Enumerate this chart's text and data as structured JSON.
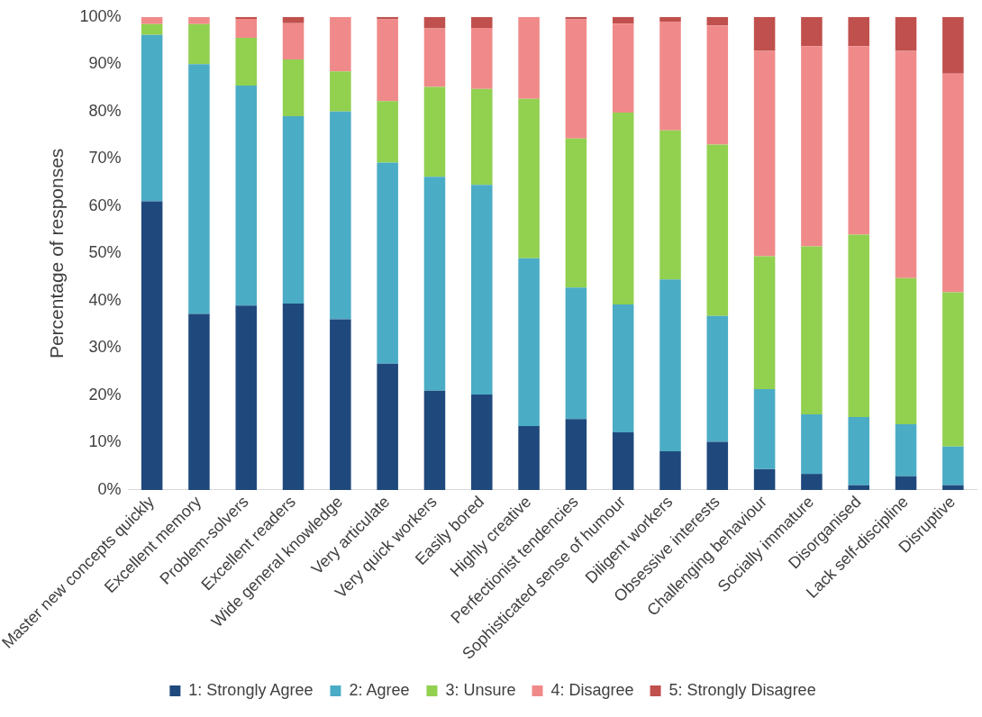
{
  "chart_data": {
    "type": "bar",
    "stacked": true,
    "ylabel": "Percentage of responses",
    "categories": [
      "Master new concepts quickly",
      "Excellent memory",
      "Problem-solvers",
      "Excellent readers",
      "Wide general knowledge",
      "Very articulate",
      "Very quick workers",
      "Easily bored",
      "Highly creative",
      "Perfectionist tendencies",
      "Sophisticated sense of humour",
      "Diligent workers",
      "Obsessive interests",
      "Challenging behaviour",
      "Socially immature",
      "Disorganised",
      "Lack self-discipline",
      "Disruptive"
    ],
    "series": [
      {
        "name": "1: Strongly Agree",
        "color": "#1f497d",
        "values": [
          61,
          37.2,
          39,
          39.4,
          36.1,
          26.7,
          21,
          20.2,
          13.5,
          15,
          12.2,
          8.2,
          10.2,
          4.4,
          3.4,
          1,
          2.9,
          1
        ]
      },
      {
        "name": "2: Agree",
        "color": "#4bacc6",
        "values": [
          35.2,
          52.8,
          46.5,
          39.6,
          43.9,
          42.5,
          45.2,
          44.3,
          35.5,
          27.8,
          27,
          36.3,
          26.6,
          16.9,
          12.6,
          14.4,
          11,
          8.2
        ]
      },
      {
        "name": "3: Unsure",
        "color": "#92d050",
        "values": [
          2.3,
          8.5,
          10.1,
          12,
          8.5,
          13,
          19,
          20.3,
          33.7,
          31.5,
          40.6,
          31.5,
          36.2,
          28.1,
          35.5,
          38.6,
          30.9,
          32.6
        ]
      },
      {
        "name": "4: Disagree",
        "color": "#f08a8a",
        "values": [
          1.5,
          1.5,
          4,
          7.7,
          11.5,
          17.3,
          12.4,
          12.9,
          17.3,
          25.2,
          18.8,
          23,
          25.2,
          43.4,
          42.3,
          39.8,
          48,
          46.2
        ]
      },
      {
        "name": "5: Strongly Disagree",
        "color": "#c0504d",
        "values": [
          0,
          0,
          0.4,
          1.3,
          0,
          0.5,
          2.4,
          2.3,
          0,
          0.5,
          1.4,
          1,
          1.8,
          7.2,
          6.2,
          6.2,
          7.2,
          12
        ]
      }
    ],
    "ylim": [
      0,
      100
    ],
    "yticks": [
      {
        "value": 0,
        "label": "0%"
      },
      {
        "value": 10,
        "label": "10%"
      },
      {
        "value": 20,
        "label": "20%"
      },
      {
        "value": 30,
        "label": "30%"
      },
      {
        "value": 40,
        "label": "40%"
      },
      {
        "value": 50,
        "label": "50%"
      },
      {
        "value": 60,
        "label": "60%"
      },
      {
        "value": 70,
        "label": "70%"
      },
      {
        "value": 80,
        "label": "80%"
      },
      {
        "value": 90,
        "label": "90%"
      },
      {
        "value": 100,
        "label": "100%"
      }
    ],
    "grid": false,
    "legend": "bottom"
  }
}
